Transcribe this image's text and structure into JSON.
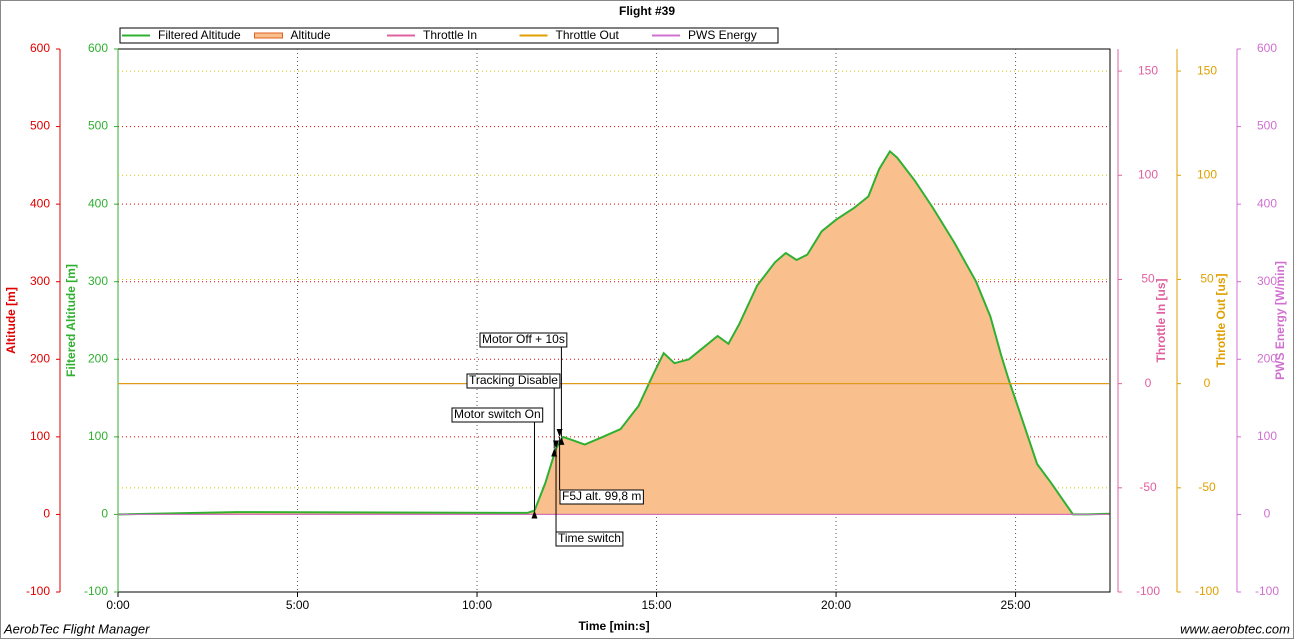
{
  "chart_data": {
    "type": "line",
    "title": "Flight #39",
    "x_label": "Time [min:s]",
    "footer_left": "AerobTec Flight Manager",
    "footer_right": "www.aerobtec.com",
    "xlim": [
      0,
      27.63
    ],
    "xticks": [
      {
        "value": 0,
        "label": "0:00"
      },
      {
        "value": 5,
        "label": "5:00"
      },
      {
        "value": 10,
        "label": "10:00"
      },
      {
        "value": 15,
        "label": "15:00"
      },
      {
        "value": 20,
        "label": "20:00"
      },
      {
        "value": 25,
        "label": "25:00"
      }
    ],
    "grid": true,
    "axes": [
      {
        "label": "Altitude [m]",
        "color": "#e00000",
        "side": "left",
        "ylim": [
          -100,
          600
        ],
        "yticks": [
          -100,
          0,
          100,
          200,
          300,
          400,
          500,
          600
        ]
      },
      {
        "label": "Filtered Altitude [m]",
        "color": "#30b030",
        "side": "left",
        "ylim": [
          -100,
          600
        ],
        "yticks": [
          -100,
          0,
          100,
          200,
          300,
          400,
          500,
          600
        ]
      },
      {
        "label": "Throttle In [us]",
        "color": "#e060a0",
        "side": "right",
        "ylim": [
          -100,
          160.6
        ],
        "yticks": [
          -100,
          -50,
          0,
          50,
          100,
          150
        ]
      },
      {
        "label": "Throttle Out [us]",
        "color": "#e0a000",
        "side": "right",
        "ylim": [
          -100,
          160.6
        ],
        "yticks": [
          -100,
          -50,
          0,
          50,
          100,
          150
        ]
      },
      {
        "label": "PWS Energy [W/min]",
        "color": "#d070d0",
        "side": "right",
        "ylim": [
          -100,
          600
        ],
        "yticks": [
          -100,
          0,
          100,
          200,
          300,
          400,
          500,
          600
        ]
      }
    ],
    "x": [
      0,
      3.3,
      11.4,
      11.6,
      11.9,
      12.2,
      12.4,
      12.7,
      13.0,
      13.5,
      14.0,
      14.5,
      14.9,
      15.2,
      15.5,
      15.9,
      16.3,
      16.7,
      17.0,
      17.3,
      17.8,
      18.3,
      18.6,
      18.9,
      19.2,
      19.6,
      20.0,
      20.5,
      20.9,
      21.2,
      21.5,
      21.7,
      22.2,
      22.7,
      23.3,
      23.9,
      24.3,
      24.6,
      24.8,
      25.2,
      25.6,
      26.0,
      26.3,
      26.6,
      27.0,
      27.6
    ],
    "series": [
      {
        "name": "Filtered Altitude",
        "color": "#30b030",
        "axis": 1,
        "style": "line",
        "values": [
          0,
          3,
          2,
          5,
          40,
          85,
          100,
          95,
          90,
          100,
          110,
          140,
          180,
          208,
          195,
          200,
          215,
          230,
          220,
          245,
          295,
          325,
          337,
          328,
          335,
          365,
          380,
          395,
          410,
          445,
          468,
          460,
          430,
          395,
          350,
          300,
          255,
          205,
          175,
          120,
          65,
          40,
          20,
          0,
          0,
          1
        ]
      },
      {
        "name": "Altitude",
        "color": "#f9c08e",
        "axis": 0,
        "style": "area",
        "values": [
          0,
          3,
          2,
          5,
          40,
          85,
          100,
          95,
          90,
          100,
          110,
          140,
          180,
          208,
          195,
          200,
          215,
          230,
          220,
          245,
          295,
          325,
          337,
          328,
          335,
          365,
          380,
          395,
          410,
          445,
          468,
          460,
          430,
          395,
          350,
          300,
          255,
          205,
          175,
          120,
          65,
          40,
          20,
          0,
          0,
          1
        ]
      },
      {
        "name": "Throttle In",
        "color": "#e060a0",
        "axis": 2,
        "style": "line",
        "values": [
          0,
          0,
          0,
          0,
          0,
          0,
          0,
          0,
          0,
          0,
          0,
          0,
          0,
          0,
          0,
          0,
          0,
          0,
          0,
          0,
          0,
          0,
          0,
          0,
          0,
          0,
          0,
          0,
          0,
          0,
          0,
          0,
          0,
          0,
          0,
          0,
          0,
          0,
          0,
          0,
          0,
          0,
          0,
          0,
          0,
          0
        ]
      },
      {
        "name": "Throttle Out",
        "color": "#e0a000",
        "axis": 3,
        "style": "line",
        "values": [
          0,
          0,
          0,
          0,
          0,
          0,
          0,
          0,
          0,
          0,
          0,
          0,
          0,
          0,
          0,
          0,
          0,
          0,
          0,
          0,
          0,
          0,
          0,
          0,
          0,
          0,
          0,
          0,
          0,
          0,
          0,
          0,
          0,
          0,
          0,
          0,
          0,
          0,
          0,
          0,
          0,
          0,
          0,
          0,
          0,
          0
        ]
      },
      {
        "name": "PWS Energy",
        "color": "#d070d0",
        "axis": 4,
        "style": "line",
        "values": [
          0,
          0,
          0,
          0,
          0,
          0,
          0,
          0,
          0,
          0,
          0,
          0,
          0,
          0,
          0,
          0,
          0,
          0,
          0,
          0,
          0,
          0,
          0,
          0,
          0,
          0,
          0,
          0,
          0,
          0,
          0,
          0,
          0,
          0,
          0,
          0,
          0,
          0,
          0,
          0,
          0,
          0,
          0,
          0,
          0,
          0
        ]
      }
    ],
    "annotations": [
      {
        "text": "Motor switch On",
        "x": 11.6,
        "y": 5
      },
      {
        "text": "Tracking Disable",
        "x": 12.15,
        "y": 85
      },
      {
        "text": "Motor Off + 10s",
        "x": 12.35,
        "y": 100
      },
      {
        "text": "F5J alt. 99,8 m",
        "x": 12.3,
        "y": 99.8
      },
      {
        "text": "Time switch",
        "x": 12.2,
        "y": 85
      }
    ]
  }
}
